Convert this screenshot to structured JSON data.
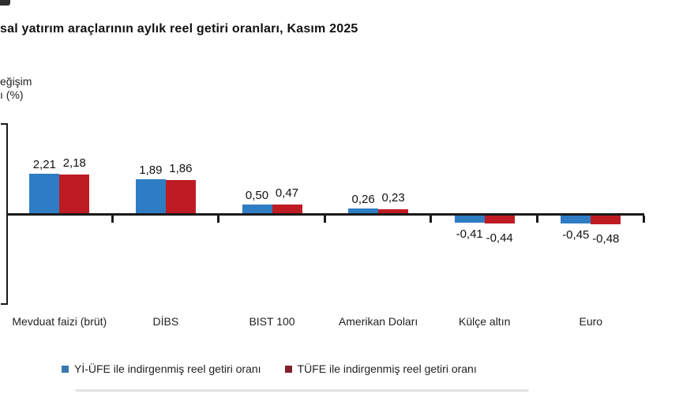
{
  "title": "sal yatırım araçlarının aylık reel getiri oranları, Kasım 2025",
  "y_axis_label": {
    "line1": "eğişim",
    "line2": "ı (%)"
  },
  "chart_data": {
    "type": "bar",
    "title": "sal yatırım araçlarının aylık reel getiri oranları, Kasım 2025",
    "ylabel": "eğişim ı (%)",
    "categories": [
      "Mevduat faizi (brüt)",
      "DİBS",
      "BIST 100",
      "Amerikan Doları",
      "Külçe altın",
      "Euro"
    ],
    "series": [
      {
        "name": "Yİ-ÜFE ile indirgenmiş reel getiri oranı",
        "color": "#2e7dc4",
        "values": [
          2.21,
          1.89,
          0.5,
          0.26,
          -0.41,
          -0.45
        ]
      },
      {
        "name": "TÜFE ile indirgenmiş reel getiri oranı",
        "color": "#bf1b23",
        "values": [
          2.18,
          1.86,
          0.47,
          0.23,
          -0.44,
          -0.48
        ]
      }
    ],
    "ylim": [
      -5,
      5
    ],
    "grid": false,
    "legend_position": "bottom",
    "decimal_separator": ","
  },
  "legend": {
    "items": [
      {
        "label": "Yİ-ÜFE ile indirgenmiş reel getiri oranı",
        "marker_color": "#3c78b0"
      },
      {
        "label": "TÜFE ile indirgenmiş reel getiri oranı",
        "marker_color": "#84202c"
      }
    ]
  },
  "colors": {
    "axis": "#1a1a1a",
    "bar_blue": "#2e7dc4",
    "bar_red": "#bf1b23"
  }
}
